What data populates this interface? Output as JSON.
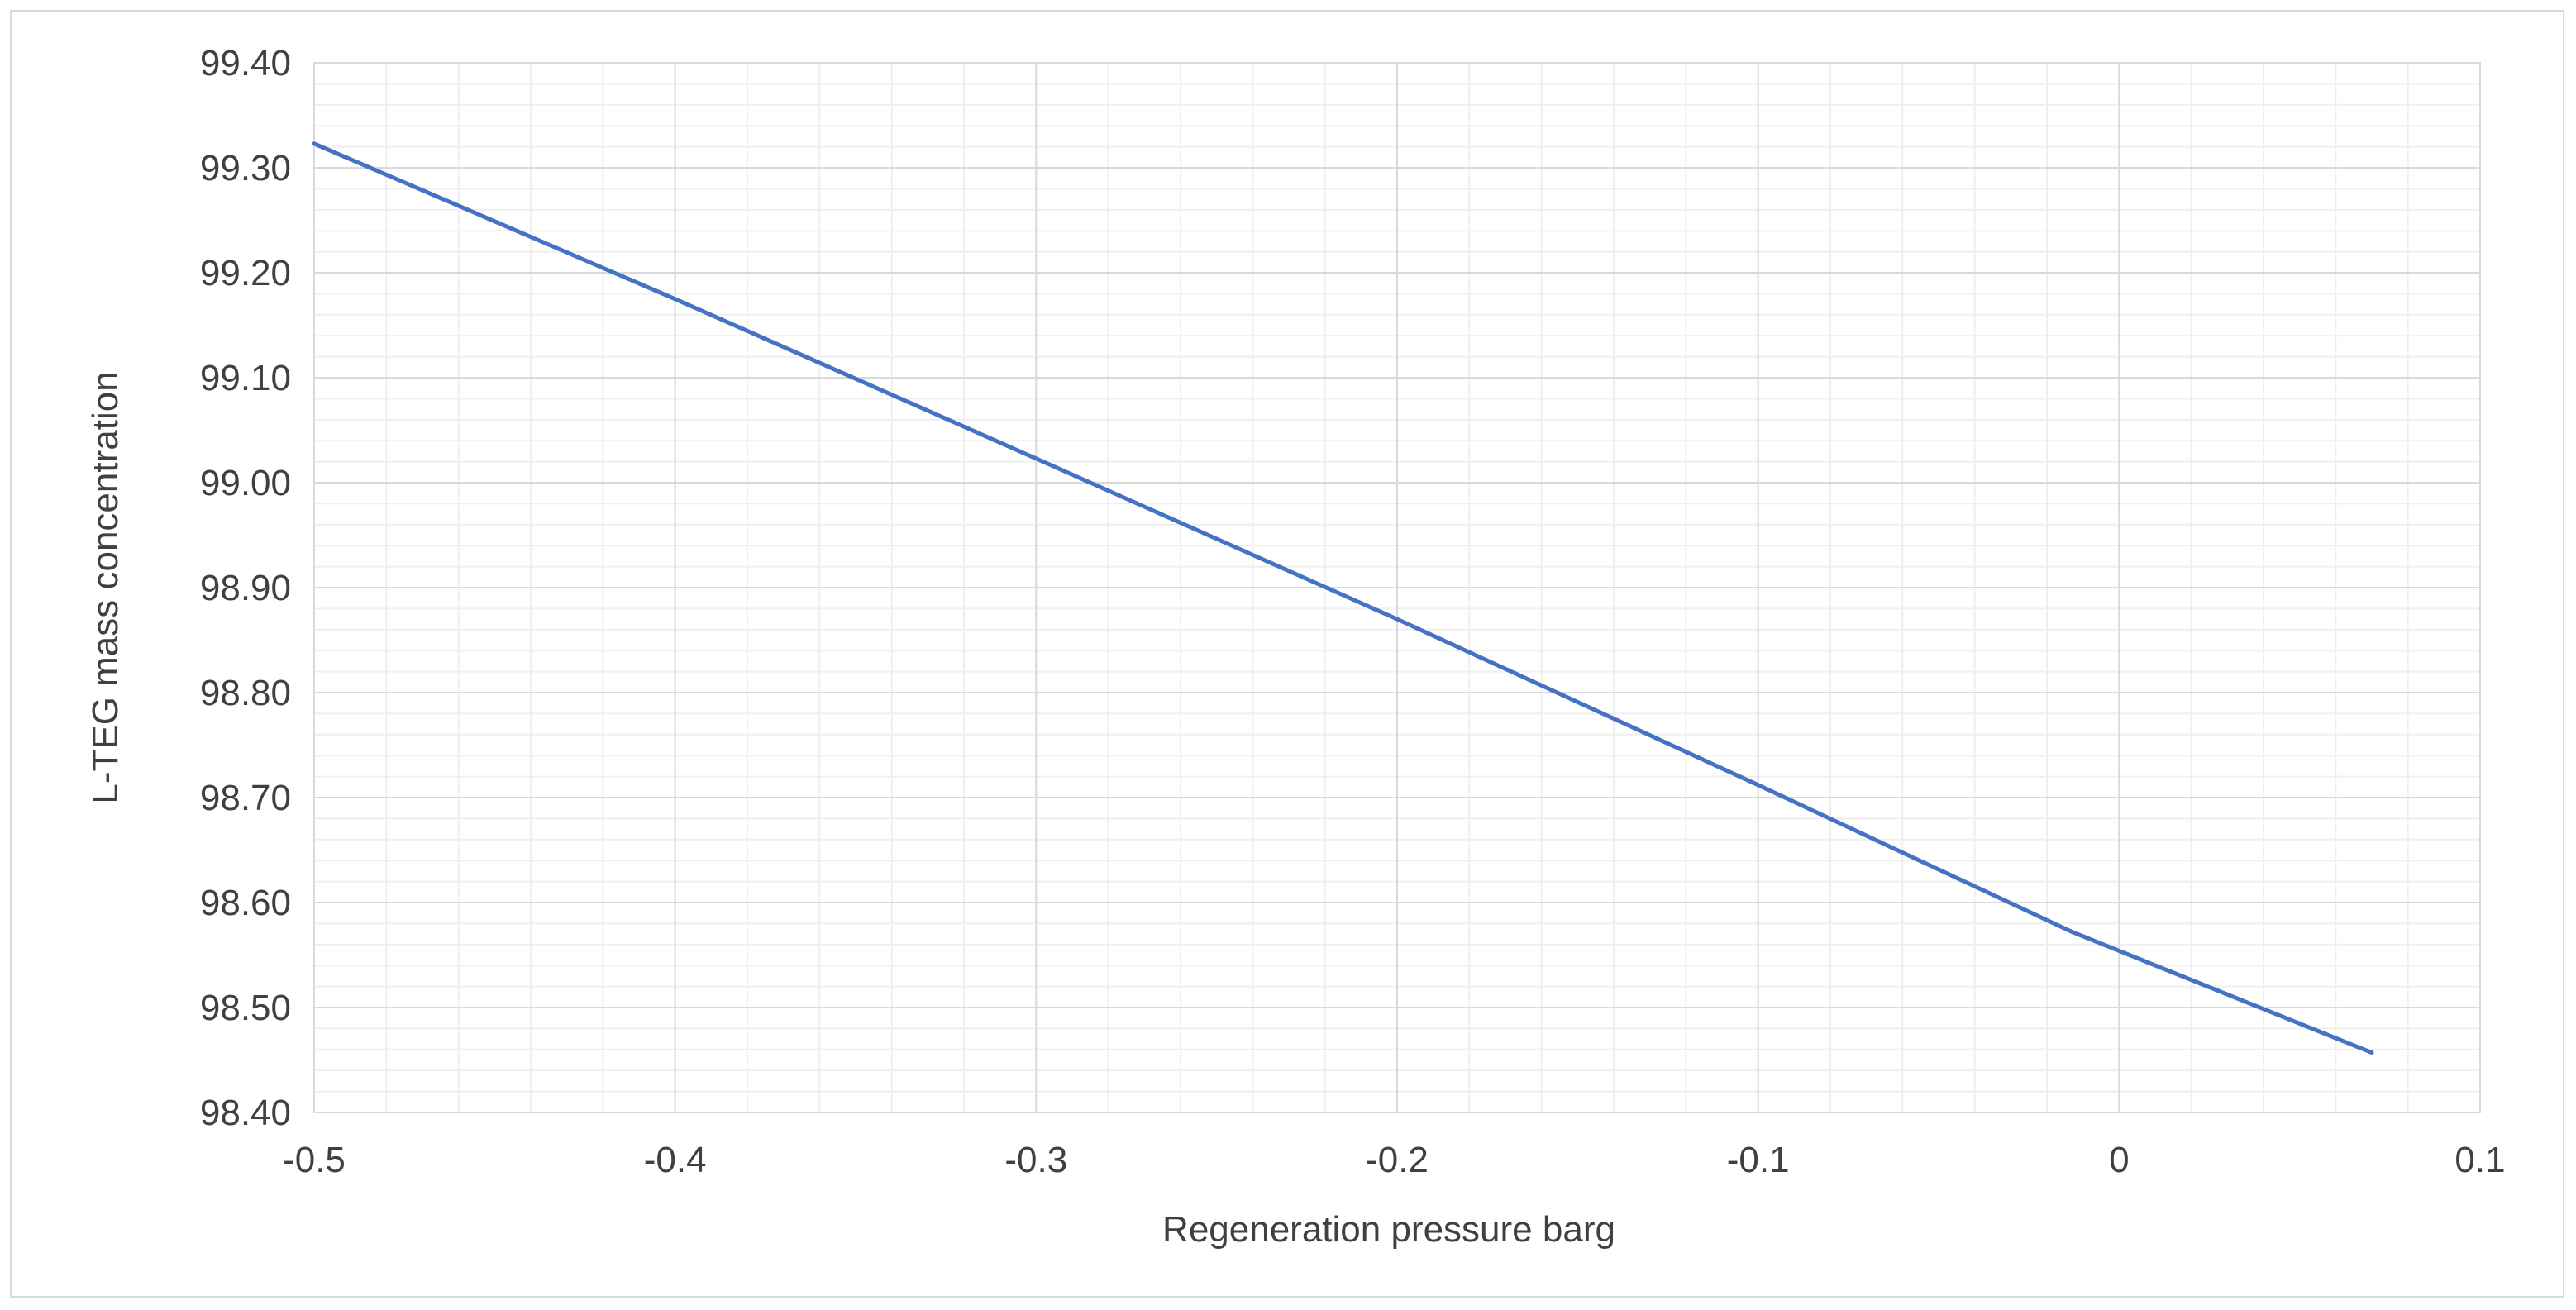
{
  "chart_data": {
    "type": "line",
    "title": "",
    "xlabel": "Regeneration pressure barg",
    "ylabel": "L-TEG mass concentration",
    "xlim": [
      -0.5,
      0.1
    ],
    "ylim": [
      98.4,
      99.4
    ],
    "x_ticks": [
      -0.5,
      -0.4,
      -0.3,
      -0.2,
      -0.1,
      0,
      0.1
    ],
    "x_tick_labels": [
      "-0.5",
      "-0.4",
      "-0.3",
      "-0.2",
      "-0.1",
      "0",
      "0.1"
    ],
    "y_ticks": [
      98.4,
      98.5,
      98.6,
      98.7,
      98.8,
      98.9,
      99.0,
      99.1,
      99.2,
      99.3,
      99.4
    ],
    "y_tick_labels": [
      "98.40",
      "98.50",
      "98.60",
      "98.70",
      "98.80",
      "98.90",
      "99.00",
      "99.10",
      "99.20",
      "99.30",
      "99.40"
    ],
    "x_minor_step": 0.02,
    "y_minor_step": 0.02,
    "grid": true,
    "legend": "none",
    "series": [
      {
        "name": "L-TEG mass concentration",
        "color": "#4472C4",
        "x": [
          -0.5,
          -0.4,
          -0.3,
          -0.2,
          -0.1,
          -0.013,
          0.07
        ],
        "y": [
          99.323,
          99.175,
          99.023,
          98.87,
          98.712,
          98.572,
          98.457
        ]
      }
    ]
  }
}
